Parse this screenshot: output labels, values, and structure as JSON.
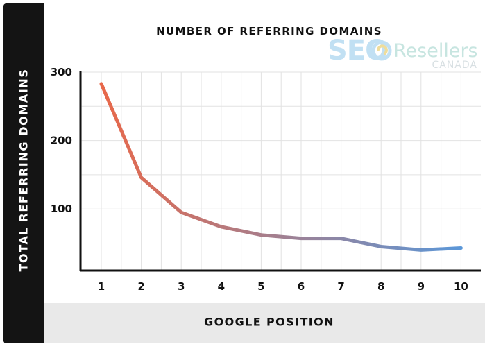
{
  "chart_data": {
    "type": "line",
    "title": "NUMBER OF REFERRING DOMAINS",
    "xlabel": "GOOGLE POSITION",
    "ylabel": "TOTAL REFERRING DOMAINS",
    "x": [
      1,
      2,
      3,
      4,
      5,
      6,
      7,
      8,
      9,
      10
    ],
    "categories": [
      "1",
      "2",
      "3",
      "4",
      "5",
      "6",
      "7",
      "8",
      "9",
      "10"
    ],
    "series": [
      {
        "values": [
          283,
          146,
          95,
          74,
          62,
          57,
          57,
          45,
          40,
          43
        ]
      }
    ],
    "ylim": [
      10,
      300
    ],
    "yticks": [
      {
        "value": 100,
        "label": "100"
      },
      {
        "value": 200,
        "label": "200"
      },
      {
        "value": 300,
        "label": "300"
      }
    ],
    "grid": true,
    "line_gradient": [
      "#e8684a",
      "#5b97d8"
    ],
    "grid_color": "#e2e2e2",
    "axis_color": "#111111",
    "band_color": "#141414",
    "footer_color": "#e9e9e9"
  },
  "watermark": {
    "seo": "SEO",
    "resellers": "Resellers",
    "canada": "CANADA"
  }
}
